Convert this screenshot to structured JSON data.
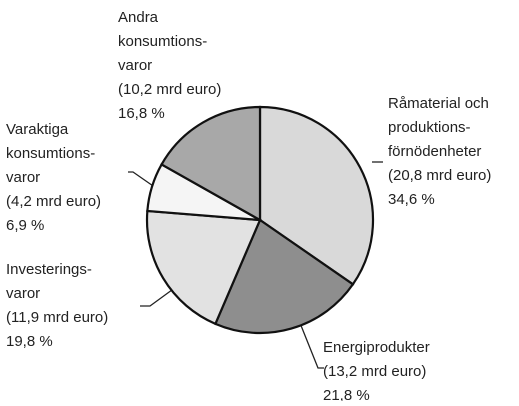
{
  "chart_data": {
    "type": "pie",
    "categories": [
      [
        "Råmaterial och",
        "produktions-",
        "förnödenheter"
      ],
      [
        "Energiprodukter"
      ],
      [
        "Investerings-",
        "varor"
      ],
      [
        "Varaktiga",
        "konsumtions-",
        "varor"
      ],
      [
        "Andra",
        "konsumtions-",
        "varor"
      ]
    ],
    "values": [
      34.6,
      21.8,
      19.8,
      6.9,
      16.8
    ],
    "value_labels": [
      "34,6 %",
      "21,8 %",
      "19,8 %",
      "6,9 %",
      "16,8 %"
    ],
    "amounts": [
      20.8,
      13.2,
      11.9,
      4.2,
      10.2
    ],
    "amount_labels": [
      "(20,8 mrd euro)",
      "(13,2 mrd euro)",
      "(11,9 mrd euro)",
      "(4,2 mrd euro)",
      "(10,2 mrd euro)"
    ],
    "colors": [
      "#d9d9d9",
      "#8e8e8e",
      "#e2e2e2",
      "#f5f5f5",
      "#a8a8a8"
    ]
  }
}
